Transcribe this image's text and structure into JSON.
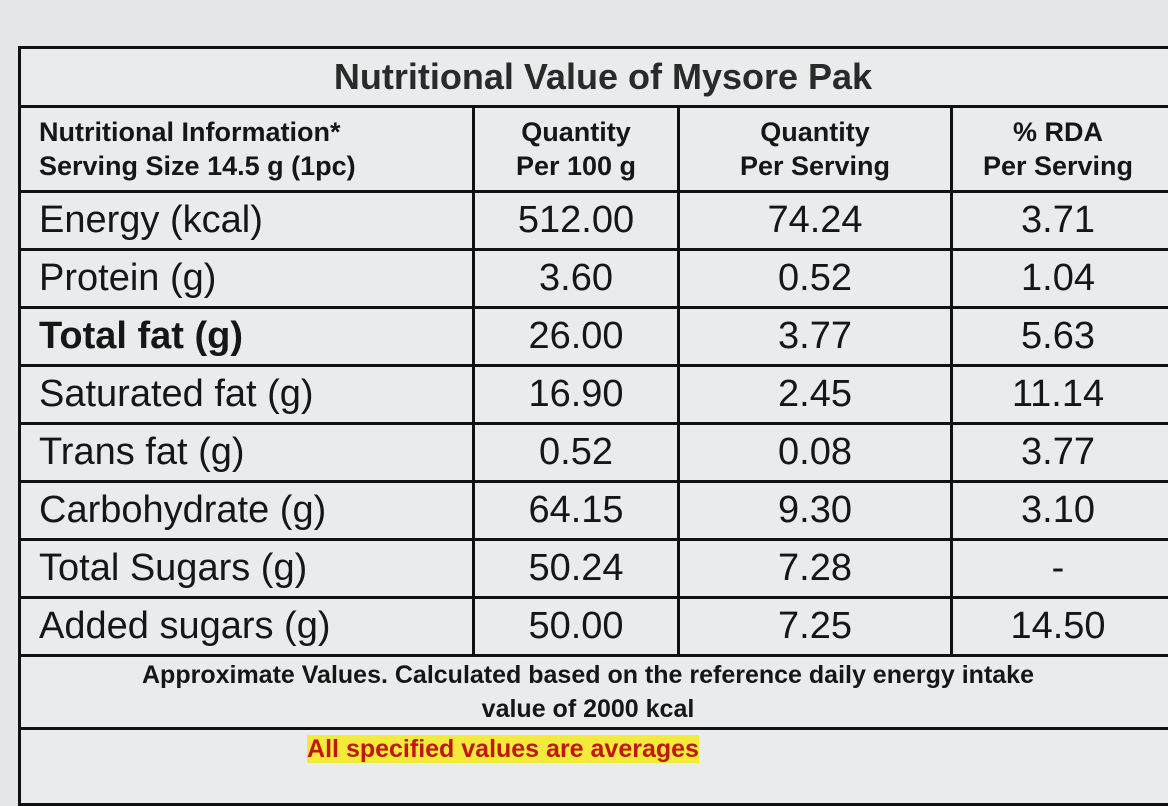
{
  "title": "Nutritional Value of Mysore Pak",
  "header": [
    [
      "Nutritional Information*",
      "Serving Size 14.5 g (1pc)"
    ],
    [
      "Quantity",
      "Per 100 g"
    ],
    [
      "Quantity",
      "Per Serving"
    ],
    [
      "% RDA",
      "Per Serving"
    ]
  ],
  "rows": [
    [
      "Energy (kcal)",
      "512.00",
      "74.24",
      "3.71"
    ],
    [
      "Protein (g)",
      "3.60",
      "0.52",
      "1.04"
    ],
    [
      "Total fat (g)",
      "26.00",
      "3.77",
      "5.63"
    ],
    [
      "Saturated fat (g)",
      "16.90",
      "2.45",
      "11.14"
    ],
    [
      "Trans fat (g)",
      "0.52",
      "0.08",
      "3.77"
    ],
    [
      "Carbohydrate (g)",
      "64.15",
      "9.30",
      "3.10"
    ],
    [
      "Total Sugars (g)",
      "50.24",
      "7.28",
      "-"
    ],
    [
      "Added sugars (g)",
      "50.00",
      "7.25",
      "14.50"
    ]
  ],
  "footnote": [
    "Approximate Values. Calculated based on the reference daily energy intake",
    "value of 2000 kcal"
  ],
  "note": "All specified values are averages"
}
